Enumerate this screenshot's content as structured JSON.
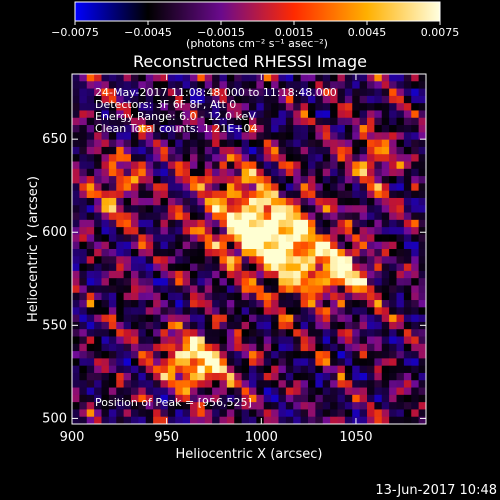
{
  "colorbar": {
    "tick_values": [
      -0.0075,
      -0.0045,
      -0.0015,
      0.0015,
      0.0045,
      0.0075
    ],
    "tick_labels": [
      "−0.0075",
      "−0.0045",
      "−0.0015",
      "0.0015",
      "0.0045",
      "0.0075"
    ],
    "units": "(photons cm⁻² s⁻¹ asec⁻²)",
    "gradient_stops": [
      "#0000ff",
      "#000000",
      "#6a0a8c",
      "#ff2a00",
      "#ffb000",
      "#ffffe0"
    ]
  },
  "plot": {
    "title": "Reconstructed RHESSI Image",
    "xlabel": "Heliocentric X (arcsec)",
    "ylabel": "Heliocentric Y (arcsec)",
    "xlim": [
      900,
      1087
    ],
    "ylim": [
      497,
      685
    ],
    "xticks": [
      900,
      950,
      1000,
      1050
    ],
    "yticks": [
      500,
      550,
      600,
      650
    ]
  },
  "annotations": {
    "time_range": "24-May-2017 11:08:48.000 to 11:18:48.000",
    "detectors": "Detectors: 3F 6F 8F, Att 0",
    "energy_range": "Energy Range: 6.0 - 12.0 keV",
    "clean_counts": "Clean      Total counts: 1.21E+04",
    "peak_position": "Position of Peak = [956,525]"
  },
  "footer": {
    "timestamp": "13-Jun-2017 10:48"
  },
  "image_grid": {
    "cols": 48,
    "rows": 48,
    "blobs": [
      {
        "x": 1005,
        "y": 598,
        "amp": 1.0,
        "sx": 28,
        "sy": 16,
        "rot": -40
      },
      {
        "x": 965,
        "y": 530,
        "amp": 0.85,
        "sx": 14,
        "sy": 10,
        "rot": -20
      },
      {
        "x": 1045,
        "y": 580,
        "amp": 0.55,
        "sx": 10,
        "sy": 10,
        "rot": 0
      },
      {
        "x": 925,
        "y": 625,
        "amp": 0.45,
        "sx": 10,
        "sy": 12,
        "rot": 0
      },
      {
        "x": 1060,
        "y": 640,
        "amp": 0.45,
        "sx": 10,
        "sy": 12,
        "rot": 0
      }
    ]
  }
}
